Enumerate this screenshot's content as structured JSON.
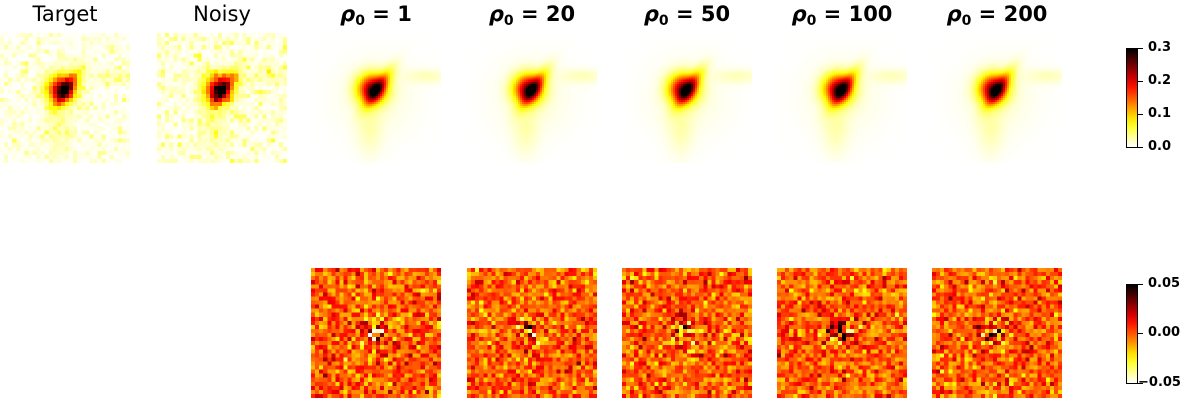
{
  "panels_top": [
    {
      "id": "target",
      "title": "Target",
      "style": "plain"
    },
    {
      "id": "noisy",
      "title": "Noisy",
      "style": "plain"
    },
    {
      "id": "rho1",
      "rho_value": "1",
      "style": "rho"
    },
    {
      "id": "rho20",
      "rho_value": "20",
      "style": "rho"
    },
    {
      "id": "rho50",
      "rho_value": "50",
      "style": "rho"
    },
    {
      "id": "rho100",
      "rho_value": "100",
      "style": "rho"
    },
    {
      "id": "rho200",
      "rho_value": "200",
      "style": "rho"
    }
  ],
  "rho_symbol": "ρ",
  "rho_subscript": "0",
  "colorbar_top": {
    "ticks": [
      "0.3",
      "0.2",
      "0.1",
      "0.0"
    ],
    "colormap": "hot_r"
  },
  "colorbar_bottom": {
    "ticks": [
      "0.05",
      "0.00",
      "−0.05"
    ],
    "colormap": "hot_r"
  }
}
